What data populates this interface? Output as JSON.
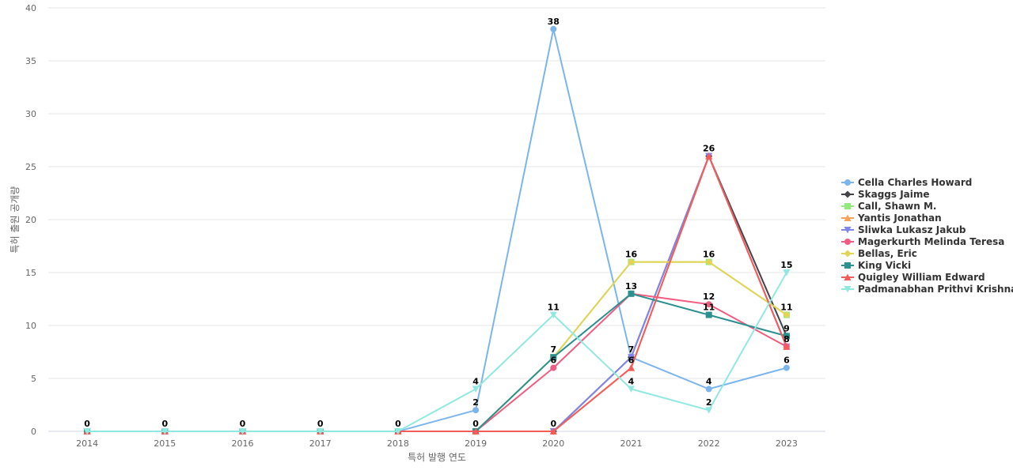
{
  "chart_data": {
    "type": "line",
    "xlabel": "특허 발행 연도",
    "ylabel": "특허 출원 공개량",
    "x": [
      "2014",
      "2015",
      "2016",
      "2017",
      "2018",
      "2019",
      "2020",
      "2021",
      "2022",
      "2023"
    ],
    "ylim": [
      0,
      40
    ],
    "yticks": [
      0,
      5,
      10,
      15,
      20,
      25,
      30,
      35,
      40
    ],
    "grid": true,
    "legend_position": "right",
    "series": [
      {
        "name": "Cella Charles Howard",
        "color": "#7cb5ec",
        "marker": "circle",
        "values": [
          0,
          0,
          0,
          0,
          0,
          2,
          38,
          7,
          4,
          6
        ]
      },
      {
        "name": "Skaggs Jaime",
        "color": "#434348",
        "marker": "diamond",
        "values": [
          0,
          0,
          0,
          0,
          0,
          0,
          0,
          7,
          26,
          9
        ]
      },
      {
        "name": "Call, Shawn M.",
        "color": "#90ed7d",
        "marker": "square",
        "values": [
          0,
          0,
          0,
          0,
          0,
          0,
          7,
          16,
          16,
          11
        ]
      },
      {
        "name": "Yantis Jonathan",
        "color": "#f7a35c",
        "marker": "triangle",
        "values": [
          0,
          0,
          0,
          0,
          0,
          0,
          0,
          6,
          26,
          8
        ]
      },
      {
        "name": "Sliwka Lukasz Jakub",
        "color": "#8085e9",
        "marker": "triangle-down",
        "values": [
          0,
          0,
          0,
          0,
          0,
          0,
          0,
          7,
          26,
          8
        ]
      },
      {
        "name": "Magerkurth Melinda Teresa",
        "color": "#f15c80",
        "marker": "circle",
        "values": [
          0,
          0,
          0,
          0,
          0,
          0,
          6,
          13,
          12,
          8
        ]
      },
      {
        "name": "Bellas, Eric",
        "color": "#e4d354",
        "marker": "diamond",
        "values": [
          0,
          0,
          0,
          0,
          0,
          0,
          7,
          16,
          16,
          11
        ]
      },
      {
        "name": "King Vicki",
        "color": "#2b908f",
        "marker": "square",
        "values": [
          0,
          0,
          0,
          0,
          0,
          0,
          7,
          13,
          11,
          9
        ]
      },
      {
        "name": "Quigley William Edward",
        "color": "#f45b5b",
        "marker": "triangle",
        "values": [
          0,
          0,
          0,
          0,
          0,
          0,
          0,
          6,
          26,
          8
        ]
      },
      {
        "name": "Padmanabhan Prithvi Krishnan",
        "color": "#91e8e1",
        "marker": "triangle-down",
        "values": [
          0,
          0,
          0,
          0,
          0,
          4,
          11,
          4,
          2,
          15
        ]
      }
    ],
    "data_labels": [
      {
        "x": "2014",
        "text": "0"
      },
      {
        "x": "2015",
        "text": "0"
      },
      {
        "x": "2016",
        "text": "0"
      },
      {
        "x": "2017",
        "text": "0"
      },
      {
        "x": "2018",
        "text": "0"
      },
      {
        "x": "2019",
        "y": 4,
        "text": "4"
      },
      {
        "x": "2019",
        "y": 2,
        "text": "2"
      },
      {
        "x": "2019",
        "y": 0,
        "text": "0"
      },
      {
        "x": "2020",
        "y": 38,
        "text": "38"
      },
      {
        "x": "2020",
        "y": 11,
        "text": "11"
      },
      {
        "x": "2020",
        "y": 7,
        "text": "7"
      },
      {
        "x": "2020",
        "y": 6,
        "text": "6"
      },
      {
        "x": "2020",
        "y": 0,
        "text": "0"
      },
      {
        "x": "2021",
        "y": 16,
        "text": "16"
      },
      {
        "x": "2021",
        "y": 13,
        "text": "13"
      },
      {
        "x": "2021",
        "y": 7,
        "text": "7"
      },
      {
        "x": "2021",
        "y": 6,
        "text": "6"
      },
      {
        "x": "2021",
        "y": 4,
        "text": "4"
      },
      {
        "x": "2022",
        "y": 26,
        "text": "26"
      },
      {
        "x": "2022",
        "y": 16,
        "text": "16"
      },
      {
        "x": "2022",
        "y": 12,
        "text": "12"
      },
      {
        "x": "2022",
        "y": 11,
        "text": "11"
      },
      {
        "x": "2022",
        "y": 4,
        "text": "4"
      },
      {
        "x": "2022",
        "y": 2,
        "text": "2"
      },
      {
        "x": "2023",
        "y": 15,
        "text": "15"
      },
      {
        "x": "2023",
        "y": 11,
        "text": "11"
      },
      {
        "x": "2023",
        "y": 9,
        "text": "9"
      },
      {
        "x": "2023",
        "y": 8,
        "text": "8"
      },
      {
        "x": "2023",
        "y": 6,
        "text": "6"
      }
    ]
  }
}
